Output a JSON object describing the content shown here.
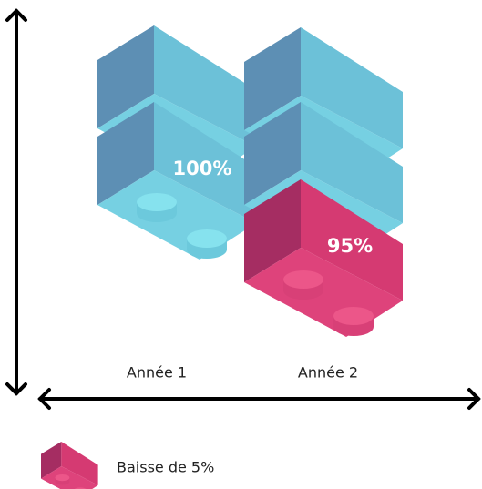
{
  "bricks": {
    "year1_label": "100%",
    "year2_label": "95%"
  },
  "x_labels": [
    "Année 1",
    "Année 2"
  ],
  "legend": {
    "label": "Baisse de 5%"
  }
}
